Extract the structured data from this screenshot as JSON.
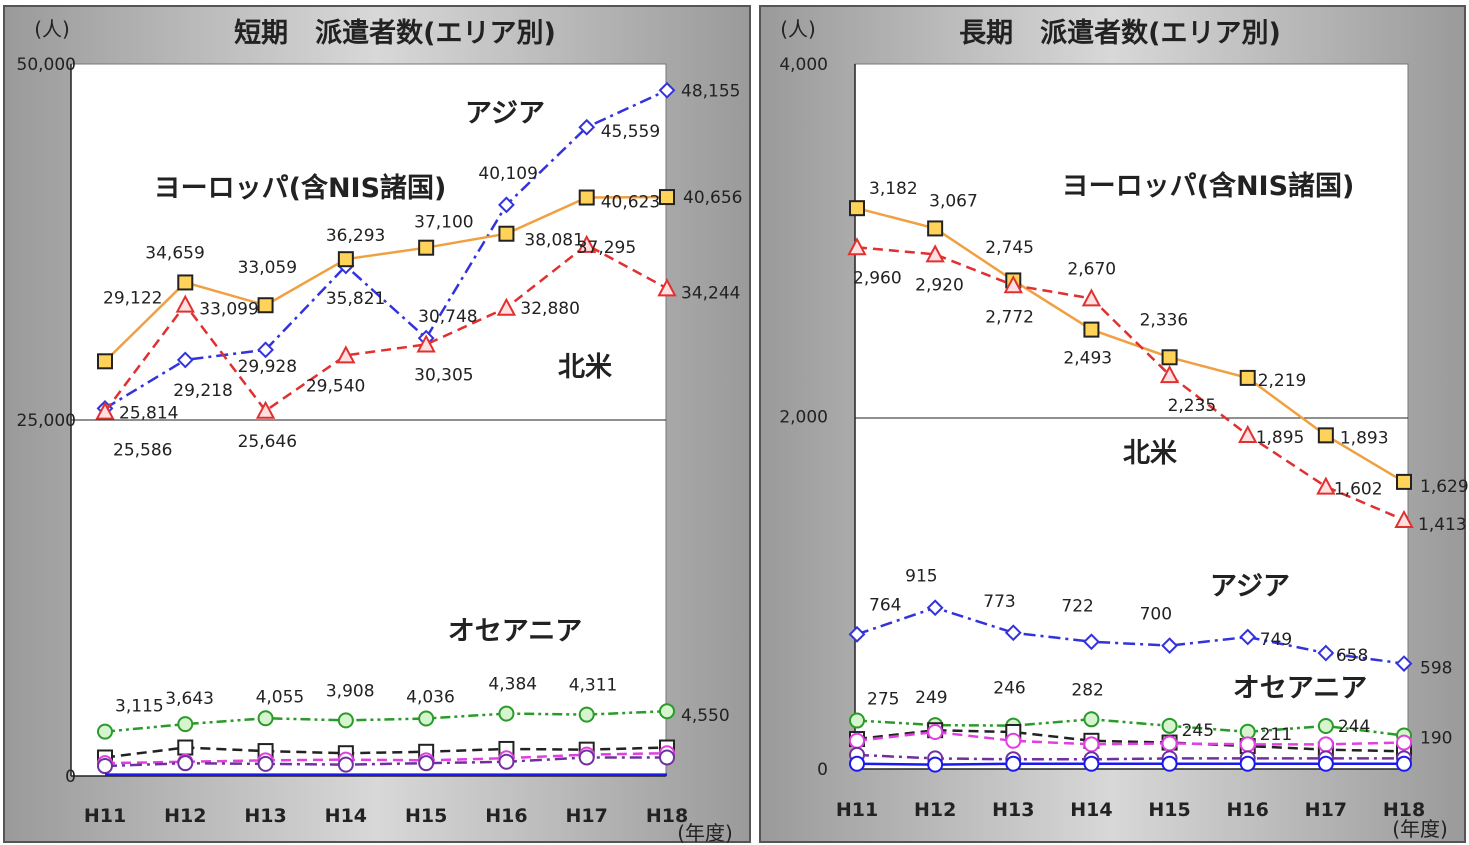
{
  "chart_data": [
    {
      "type": "line",
      "title": "短期　派遣者数(エリア別)",
      "unit_label": "(人)",
      "xaxis_label": "(年度)",
      "categories": [
        "H11",
        "H12",
        "H13",
        "H14",
        "H15",
        "H16",
        "H17",
        "H18"
      ],
      "ylim": [
        0,
        50000
      ],
      "yticks": [
        "50,000",
        "25,000",
        "0"
      ],
      "ytick_values": [
        50000,
        25000,
        0
      ],
      "grid": "horizontal line at 25,000",
      "series": [
        {
          "name": "アジア",
          "color": "#3333dd",
          "marker": "diamond",
          "dash": "dash-dot",
          "values": [
            25814,
            29218,
            29928,
            35821,
            30748,
            40109,
            45559,
            48155
          ],
          "labels": [
            "25,814",
            "29,218",
            "29,928",
            "35,821",
            "30,748",
            "40,109",
            "45,559",
            "48,155"
          ]
        },
        {
          "name": "ヨーロッパ(含NIS諸国)",
          "color": "#f0a040",
          "marker": "square",
          "dash": "solid",
          "values": [
            29122,
            34659,
            33059,
            36293,
            37100,
            38081,
            40623,
            40656
          ],
          "labels": [
            "29,122",
            "34,659",
            "33,059",
            "36,293",
            "37,100",
            "38,081",
            "40,623",
            "40,656"
          ]
        },
        {
          "name": "北米",
          "color": "#e03030",
          "marker": "triangle",
          "dash": "dashed",
          "values": [
            25586,
            33099,
            25646,
            29540,
            30305,
            32880,
            37295,
            34244
          ],
          "labels": [
            "25,586",
            "33,099",
            "25,646",
            "29,540",
            "30,305",
            "32,880",
            "37,295",
            "34,244"
          ]
        },
        {
          "name": "オセアニア",
          "color": "#2a9a2a",
          "marker": "circle",
          "dash": "dash-dot-dot",
          "values": [
            3115,
            3643,
            4055,
            3908,
            4036,
            4384,
            4311,
            4550
          ],
          "labels": [
            "3,115",
            "3,643",
            "4,055",
            "3,908",
            "4,036",
            "4,384",
            "4,311",
            "4,550"
          ]
        },
        {
          "name": "",
          "color": "#222222",
          "marker": "square",
          "dash": "dashed",
          "values": [
            1300,
            2000,
            1750,
            1600,
            1700,
            1900,
            1850,
            2000
          ],
          "labels": []
        },
        {
          "name": "",
          "color": "#e040e0",
          "marker": "circle",
          "dash": "dashed",
          "values": [
            900,
            1000,
            1100,
            1150,
            1100,
            1250,
            1500,
            1600
          ],
          "labels": []
        },
        {
          "name": "",
          "color": "#7030a0",
          "marker": "circle",
          "dash": "dash-dot",
          "values": [
            700,
            900,
            850,
            800,
            900,
            1000,
            1300,
            1300
          ],
          "labels": []
        },
        {
          "name": "",
          "color": "#1a1aee",
          "marker": "none",
          "dash": "solid",
          "values": [
            100,
            100,
            100,
            100,
            100,
            100,
            100,
            100
          ],
          "labels": []
        }
      ]
    },
    {
      "type": "line",
      "title": "長期　派遣者数(エリア別)",
      "unit_label": "(人)",
      "xaxis_label": "(年度)",
      "categories": [
        "H11",
        "H12",
        "H13",
        "H14",
        "H15",
        "H16",
        "H17",
        "H18"
      ],
      "ylim": [
        0,
        4000
      ],
      "yticks": [
        "4,000",
        "2,000",
        "0"
      ],
      "ytick_values": [
        4000,
        2000,
        0
      ],
      "grid": "horizontal line at 2,000",
      "series": [
        {
          "name": "ヨーロッパ(含NIS諸国)",
          "color": "#f0a040",
          "marker": "square",
          "dash": "solid",
          "values": [
            3182,
            3067,
            2772,
            2493,
            2336,
            2219,
            1893,
            1629
          ],
          "labels": [
            "3,182",
            "3,067",
            "2,772",
            "2,493",
            "2,336",
            "2,219",
            "1,893",
            "1,629"
          ]
        },
        {
          "name": "北米",
          "color": "#e03030",
          "marker": "triangle",
          "dash": "dashed",
          "values": [
            2960,
            2920,
            2745,
            2670,
            2235,
            1895,
            1602,
            1413
          ],
          "labels": [
            "2,960",
            "2,920",
            "2,745",
            "2,670",
            "2,235",
            "1,895",
            "1,602",
            "1,413"
          ]
        },
        {
          "name": "アジア",
          "color": "#3333dd",
          "marker": "diamond",
          "dash": "dash-dot",
          "values": [
            764,
            915,
            773,
            722,
            700,
            749,
            658,
            598
          ],
          "labels": [
            "764",
            "915",
            "773",
            "722",
            "700",
            "749",
            "658",
            "598"
          ]
        },
        {
          "name": "オセアニア",
          "color": "#2a9a2a",
          "marker": "circle",
          "dash": "dash-dot-dot",
          "values": [
            275,
            249,
            246,
            282,
            245,
            211,
            244,
            190
          ],
          "labels": [
            "275",
            "249",
            "246",
            "282",
            "245",
            "211",
            "244",
            "190"
          ]
        },
        {
          "name": "",
          "color": "#222222",
          "marker": "square",
          "dash": "dashed",
          "values": [
            170,
            220,
            210,
            160,
            150,
            130,
            110,
            100
          ],
          "labels": []
        },
        {
          "name": "",
          "color": "#e040e0",
          "marker": "circle",
          "dash": "dashed",
          "values": [
            160,
            210,
            160,
            140,
            145,
            140,
            140,
            150
          ],
          "labels": []
        },
        {
          "name": "",
          "color": "#7030a0",
          "marker": "circle",
          "dash": "dash-dot",
          "values": [
            80,
            60,
            55,
            55,
            60,
            60,
            60,
            60
          ],
          "labels": []
        },
        {
          "name": "",
          "color": "#1a1aee",
          "marker": "circle",
          "dash": "solid",
          "values": [
            30,
            25,
            30,
            30,
            30,
            30,
            30,
            30
          ],
          "labels": []
        }
      ]
    }
  ]
}
